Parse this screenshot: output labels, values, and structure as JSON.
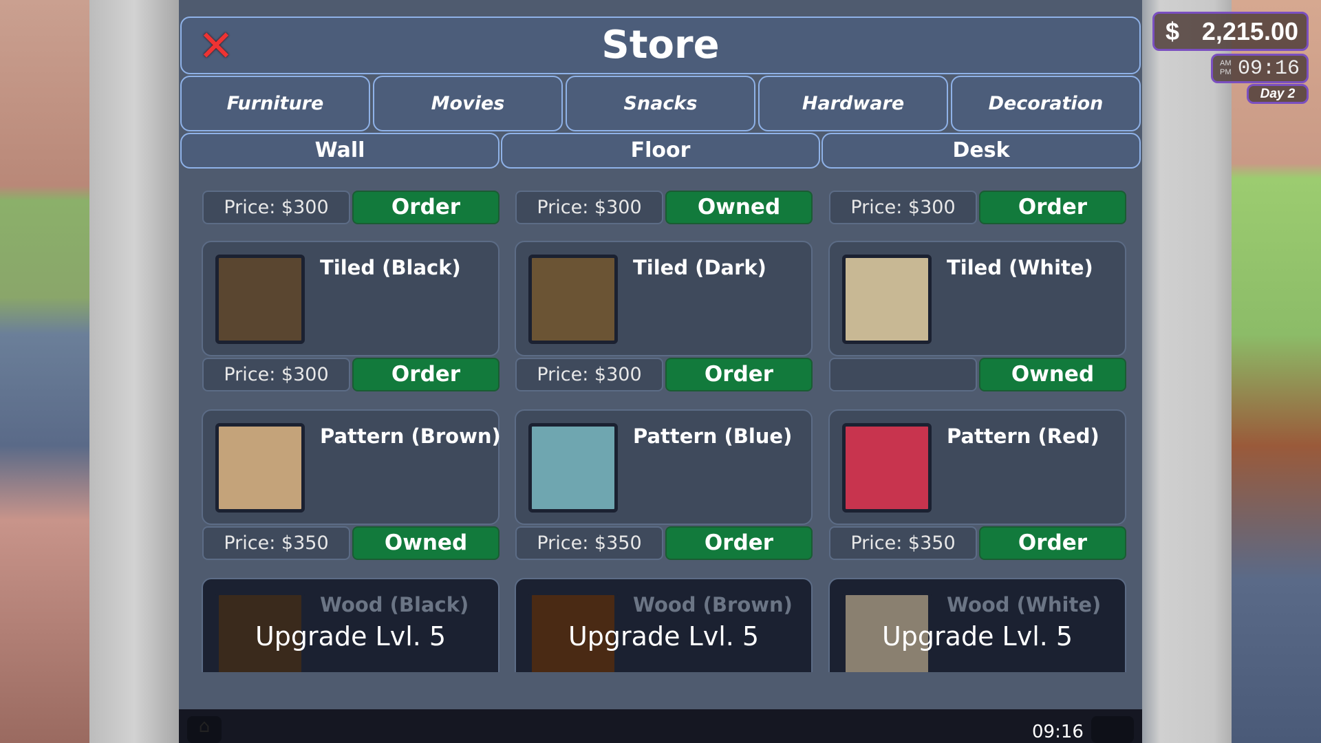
{
  "store": {
    "title": "Store",
    "categories": [
      "Furniture",
      "Movies",
      "Snacks",
      "Hardware",
      "Decoration"
    ],
    "subcategories": [
      "Wall",
      "Floor",
      "Desk"
    ],
    "top_row": [
      {
        "price": "Price: $300",
        "action": "Order"
      },
      {
        "price": "Price: $300",
        "action": "Owned"
      },
      {
        "price": "Price: $300",
        "action": "Order"
      }
    ],
    "items": [
      {
        "name": "Tiled (Black)",
        "price": "Price: $300",
        "action": "Order",
        "swatch": "#5a4630"
      },
      {
        "name": "Tiled (Dark)",
        "price": "Price: $300",
        "action": "Order",
        "swatch": "#6b5434"
      },
      {
        "name": "Tiled (White)",
        "price": "",
        "action": "Owned",
        "swatch": "#c8b894"
      },
      {
        "name": "Pattern (Brown)",
        "price": "Price: $350",
        "action": "Owned",
        "swatch": "#c4a37a"
      },
      {
        "name": "Pattern (Blue)",
        "price": "Price: $350",
        "action": "Order",
        "swatch": "#6fa6b0"
      },
      {
        "name": "Pattern (Red)",
        "price": "Price: $350",
        "action": "Order",
        "swatch": "#c8344e"
      }
    ],
    "locked": [
      {
        "name": "Wood (Black)",
        "lock": "Upgrade Lvl.",
        "level": "5",
        "swatch": "#3a2a1c"
      },
      {
        "name": "Wood (Brown)",
        "lock": "Upgrade Lvl.",
        "level": "5",
        "swatch": "#4a2a14"
      },
      {
        "name": "Wood (White)",
        "lock": "Upgrade Lvl.",
        "level": "5",
        "swatch": "#8a8070"
      }
    ]
  },
  "hud": {
    "currency": "$",
    "money": "2,215.00",
    "ampm": "AM PM",
    "time": "09:16",
    "day": "Day 2"
  },
  "bottom": {
    "time": "09:16"
  }
}
